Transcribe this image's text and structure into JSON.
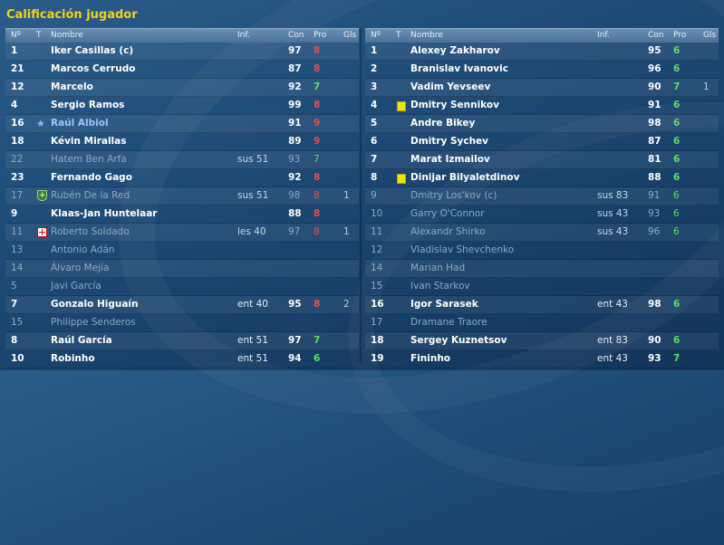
{
  "title": "Calificación jugador",
  "columns": {
    "num": "Nº",
    "t": "T",
    "name": "Nombre",
    "inf": "Inf.",
    "con": "Con",
    "pro": "Pro",
    "gls": "Gls"
  },
  "colors": {
    "title": "#f2d21a",
    "pro_red": "#e45050",
    "pro_green": "#5ce05c",
    "dim_text": "#8ea9c2"
  },
  "left_team": [
    {
      "num": "1",
      "name": "Iker Casillas (c)",
      "inf": "",
      "con": "97",
      "pro": "8",
      "gls": "",
      "dim": false,
      "pro_color": "red",
      "icon": ""
    },
    {
      "num": "21",
      "name": "Marcos Cerrudo",
      "inf": "",
      "con": "87",
      "pro": "8",
      "gls": "",
      "dim": false,
      "pro_color": "red",
      "icon": ""
    },
    {
      "num": "12",
      "name": "Marcelo",
      "inf": "",
      "con": "92",
      "pro": "7",
      "gls": "",
      "dim": false,
      "pro_color": "green",
      "icon": ""
    },
    {
      "num": "4",
      "name": "Sergio Ramos",
      "inf": "",
      "con": "99",
      "pro": "8",
      "gls": "",
      "dim": false,
      "pro_color": "red",
      "icon": ""
    },
    {
      "num": "16",
      "name": "Raúl Albiol",
      "inf": "",
      "con": "91",
      "pro": "9",
      "gls": "",
      "dim": false,
      "pro_color": "red",
      "icon": "star-icon",
      "name_blue": true
    },
    {
      "num": "18",
      "name": "Kévin Mirallas",
      "inf": "",
      "con": "89",
      "pro": "9",
      "gls": "",
      "dim": false,
      "pro_color": "red",
      "icon": ""
    },
    {
      "num": "22",
      "name": "Hatem Ben Arfa",
      "inf": "sus 51",
      "con": "93",
      "pro": "7",
      "gls": "",
      "dim": true,
      "pro_color": "green",
      "icon": ""
    },
    {
      "num": "23",
      "name": "Fernando Gago",
      "inf": "",
      "con": "92",
      "pro": "8",
      "gls": "",
      "dim": false,
      "pro_color": "red",
      "icon": ""
    },
    {
      "num": "17",
      "name": "Rubén De la Red",
      "inf": "sus 51",
      "con": "98",
      "pro": "8",
      "gls": "1",
      "dim": true,
      "pro_color": "red",
      "icon": "shield-plus-icon"
    },
    {
      "num": "9",
      "name": "Klaas-Jan Huntelaar",
      "inf": "",
      "con": "88",
      "pro": "8",
      "gls": "",
      "dim": false,
      "pro_color": "red",
      "icon": ""
    },
    {
      "num": "11",
      "name": "Roberto Soldado",
      "inf": "les 40",
      "con": "97",
      "pro": "8",
      "gls": "1",
      "dim": true,
      "pro_color": "red",
      "icon": "injury-cross-icon"
    },
    {
      "num": "13",
      "name": "Antonio Adán",
      "inf": "",
      "con": "",
      "pro": "",
      "gls": "",
      "dim": true,
      "pro_color": "",
      "icon": ""
    },
    {
      "num": "14",
      "name": "Álvaro Mejía",
      "inf": "",
      "con": "",
      "pro": "",
      "gls": "",
      "dim": true,
      "pro_color": "",
      "icon": ""
    },
    {
      "num": "5",
      "name": "Javi García",
      "inf": "",
      "con": "",
      "pro": "",
      "gls": "",
      "dim": true,
      "pro_color": "",
      "icon": ""
    },
    {
      "num": "7",
      "name": "Gonzalo Higuaín",
      "inf": "ent 40",
      "con": "95",
      "pro": "8",
      "gls": "2",
      "dim": false,
      "pro_color": "red",
      "icon": ""
    },
    {
      "num": "15",
      "name": "Philippe Senderos",
      "inf": "",
      "con": "",
      "pro": "",
      "gls": "",
      "dim": true,
      "pro_color": "",
      "icon": ""
    },
    {
      "num": "8",
      "name": "Raúl García",
      "inf": "ent 51",
      "con": "97",
      "pro": "7",
      "gls": "",
      "dim": false,
      "pro_color": "green",
      "icon": ""
    },
    {
      "num": "10",
      "name": "Robinho",
      "inf": "ent 51",
      "con": "94",
      "pro": "6",
      "gls": "",
      "dim": false,
      "pro_color": "green",
      "icon": ""
    }
  ],
  "right_team": [
    {
      "num": "1",
      "name": "Alexey Zakharov",
      "inf": "",
      "con": "95",
      "pro": "6",
      "gls": "",
      "dim": false,
      "pro_color": "green",
      "icon": ""
    },
    {
      "num": "2",
      "name": "Branislav Ivanovic",
      "inf": "",
      "con": "96",
      "pro": "6",
      "gls": "",
      "dim": false,
      "pro_color": "green",
      "icon": ""
    },
    {
      "num": "3",
      "name": "Vadim Yevseev",
      "inf": "",
      "con": "90",
      "pro": "7",
      "gls": "1",
      "dim": false,
      "pro_color": "green",
      "icon": ""
    },
    {
      "num": "4",
      "name": "Dmitry Sennikov",
      "inf": "",
      "con": "91",
      "pro": "6",
      "gls": "",
      "dim": false,
      "pro_color": "green",
      "icon": "yellow-card-icon"
    },
    {
      "num": "5",
      "name": "Andre Bikey",
      "inf": "",
      "con": "98",
      "pro": "6",
      "gls": "",
      "dim": false,
      "pro_color": "green",
      "icon": ""
    },
    {
      "num": "6",
      "name": "Dmitry Sychev",
      "inf": "",
      "con": "87",
      "pro": "6",
      "gls": "",
      "dim": false,
      "pro_color": "green",
      "icon": ""
    },
    {
      "num": "7",
      "name": "Marat Izmailov",
      "inf": "",
      "con": "81",
      "pro": "6",
      "gls": "",
      "dim": false,
      "pro_color": "green",
      "icon": ""
    },
    {
      "num": "8",
      "name": "Dinijar Bilyaletdinov",
      "inf": "",
      "con": "88",
      "pro": "6",
      "gls": "",
      "dim": false,
      "pro_color": "green",
      "icon": "yellow-card-icon"
    },
    {
      "num": "9",
      "name": "Dmitry Los'kov (c)",
      "inf": "sus 83",
      "con": "91",
      "pro": "6",
      "gls": "",
      "dim": true,
      "pro_color": "green",
      "icon": ""
    },
    {
      "num": "10",
      "name": "Garry O'Connor",
      "inf": "sus 43",
      "con": "93",
      "pro": "6",
      "gls": "",
      "dim": true,
      "pro_color": "green",
      "icon": ""
    },
    {
      "num": "11",
      "name": "Alexandr Shirko",
      "inf": "sus 43",
      "con": "96",
      "pro": "6",
      "gls": "",
      "dim": true,
      "pro_color": "green",
      "icon": ""
    },
    {
      "num": "12",
      "name": "Vladislav Shevchenko",
      "inf": "",
      "con": "",
      "pro": "",
      "gls": "",
      "dim": true,
      "pro_color": "",
      "icon": ""
    },
    {
      "num": "14",
      "name": "Marian Had",
      "inf": "",
      "con": "",
      "pro": "",
      "gls": "",
      "dim": true,
      "pro_color": "",
      "icon": ""
    },
    {
      "num": "15",
      "name": "Ivan Starkov",
      "inf": "",
      "con": "",
      "pro": "",
      "gls": "",
      "dim": true,
      "pro_color": "",
      "icon": ""
    },
    {
      "num": "16",
      "name": "Igor Sarasek",
      "inf": "ent 43",
      "con": "98",
      "pro": "6",
      "gls": "",
      "dim": false,
      "pro_color": "green",
      "icon": ""
    },
    {
      "num": "17",
      "name": "Dramane Traore",
      "inf": "",
      "con": "",
      "pro": "",
      "gls": "",
      "dim": true,
      "pro_color": "",
      "icon": ""
    },
    {
      "num": "18",
      "name": "Sergey Kuznetsov",
      "inf": "ent 83",
      "con": "90",
      "pro": "6",
      "gls": "",
      "dim": false,
      "pro_color": "green",
      "icon": ""
    },
    {
      "num": "19",
      "name": "Fininho",
      "inf": "ent 43",
      "con": "93",
      "pro": "7",
      "gls": "",
      "dim": false,
      "pro_color": "green",
      "icon": ""
    }
  ]
}
